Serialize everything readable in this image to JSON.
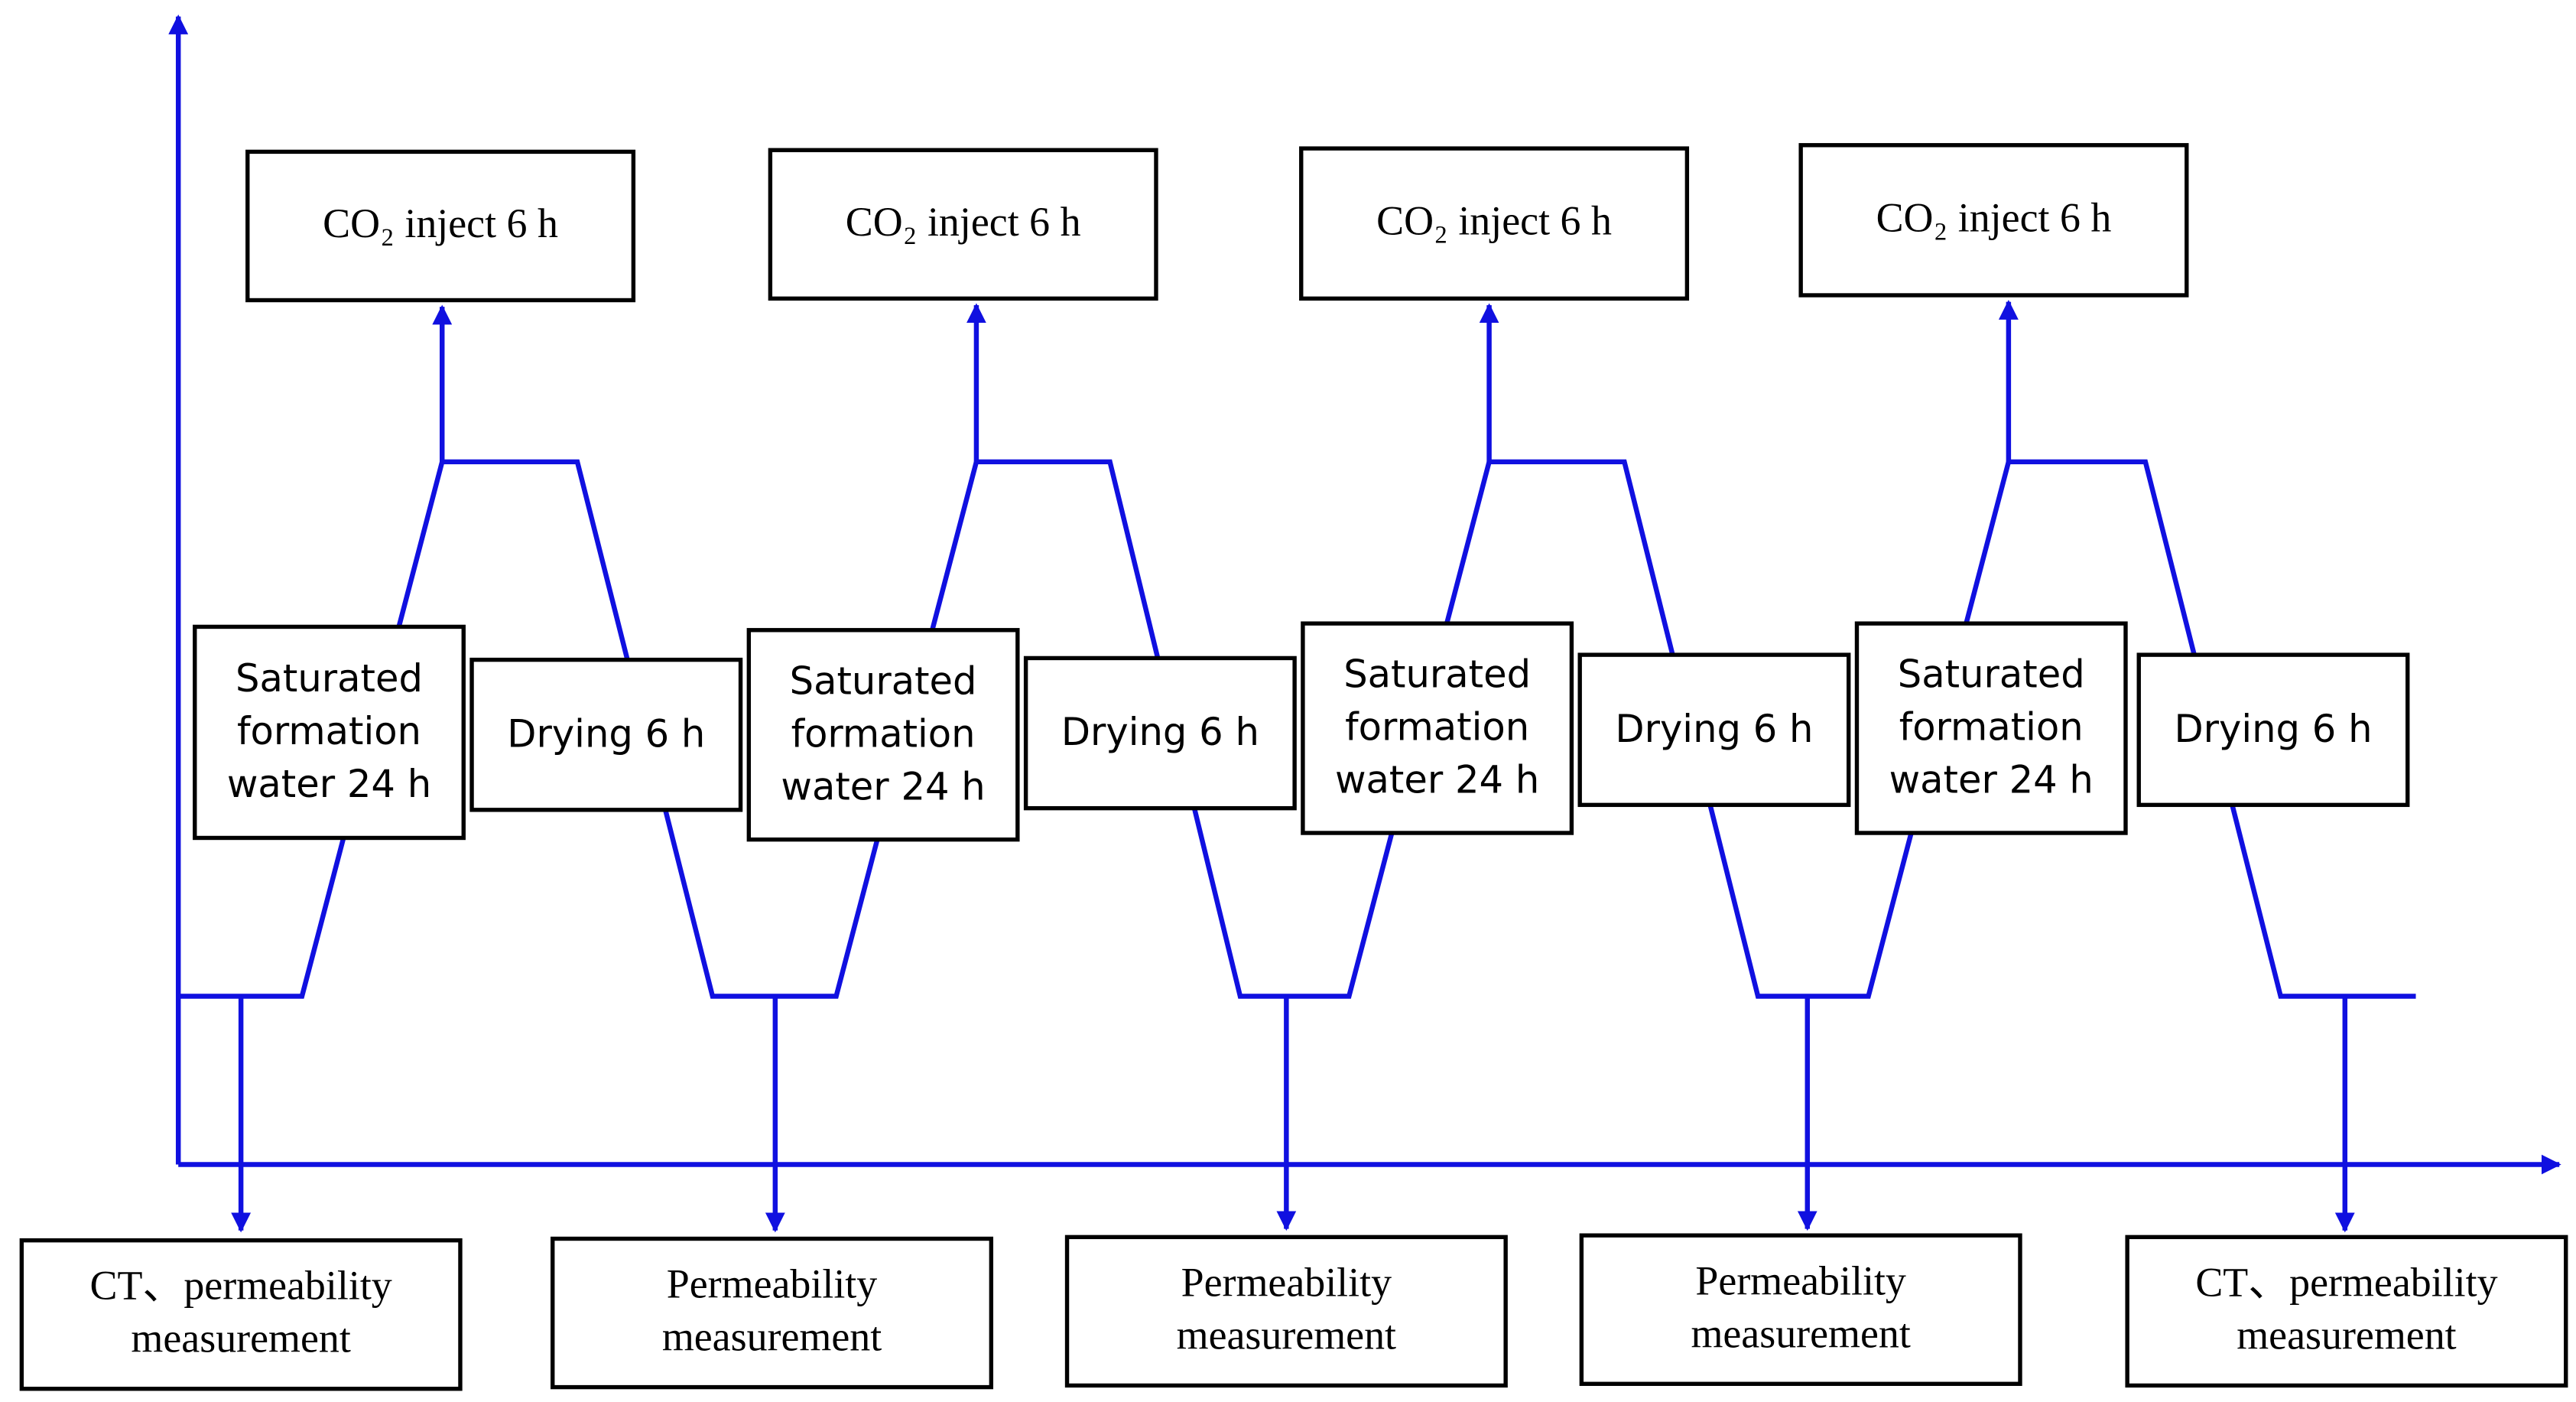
{
  "co2_boxes": [
    {
      "label": "CO₂ inject 6 h"
    },
    {
      "label": "CO₂ inject 6 h"
    },
    {
      "label": "CO₂ inject 6 h"
    },
    {
      "label": "CO₂ inject 6 h"
    }
  ],
  "saturation_boxes": [
    {
      "lines": [
        "Saturated",
        "formation",
        "water 24 h"
      ]
    },
    {
      "lines": [
        "Saturated",
        "formation",
        "water 24 h"
      ]
    },
    {
      "lines": [
        "Saturated",
        "formation",
        "water 24 h"
      ]
    },
    {
      "lines": [
        "Saturated",
        "formation",
        "water 24 h"
      ]
    }
  ],
  "drying_boxes": [
    {
      "label": "Drying 6 h"
    },
    {
      "label": "Drying 6 h"
    },
    {
      "label": "Drying 6 h"
    },
    {
      "label": "Drying 6 h"
    }
  ],
  "measurement_boxes": [
    {
      "lines": [
        "CT、permeability",
        "measurement"
      ]
    },
    {
      "lines": [
        "Permeability",
        "measurement"
      ]
    },
    {
      "lines": [
        "Permeability",
        "measurement"
      ]
    },
    {
      "lines": [
        "Permeability",
        "measurement"
      ]
    },
    {
      "lines": [
        "CT、permeability",
        "measurement"
      ]
    }
  ]
}
